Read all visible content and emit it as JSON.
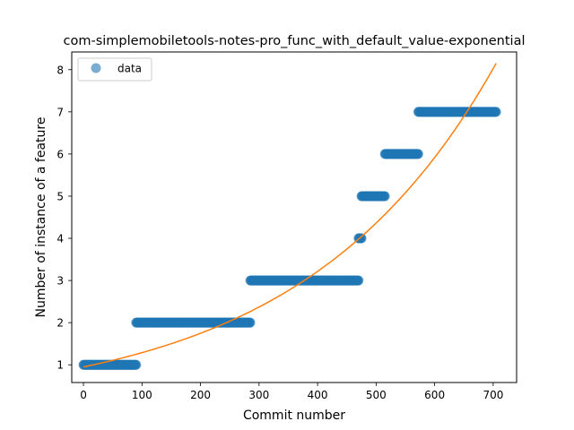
{
  "chart_data": {
    "type": "scatter",
    "title": "com-simplemobiletools-notes-pro_func_with_default_value-exponential",
    "xlabel": "Commit number",
    "ylabel": "Number of instance of a feature",
    "xlim": [
      -20,
      740
    ],
    "ylim": [
      0.58,
      8.42
    ],
    "xticks": [
      0,
      100,
      200,
      300,
      400,
      500,
      600,
      700
    ],
    "yticks": [
      1,
      2,
      3,
      4,
      5,
      6,
      7,
      8
    ],
    "grid": false,
    "legend": {
      "placement": "top-left",
      "entries": [
        "data"
      ]
    },
    "colors": {
      "data": "#1f77b4",
      "fit": "#ff7f0e"
    },
    "series": [
      {
        "name": "data",
        "kind": "scatter",
        "segments": [
          {
            "x_start": 0,
            "x_end": 90,
            "y": 1
          },
          {
            "x_start": 90,
            "x_end": 285,
            "y": 2
          },
          {
            "x_start": 285,
            "x_end": 470,
            "y": 3
          },
          {
            "x_start": 470,
            "x_end": 475,
            "y": 4
          },
          {
            "x_start": 475,
            "x_end": 515,
            "y": 5
          },
          {
            "x_start": 515,
            "x_end": 572,
            "y": 6
          },
          {
            "x_start": 572,
            "x_end": 705,
            "y": 7
          }
        ]
      },
      {
        "kind": "line",
        "model": "exponential",
        "x_start": 0,
        "x_end": 705,
        "y_start": 0.95,
        "y_end": 8.15
      }
    ]
  }
}
